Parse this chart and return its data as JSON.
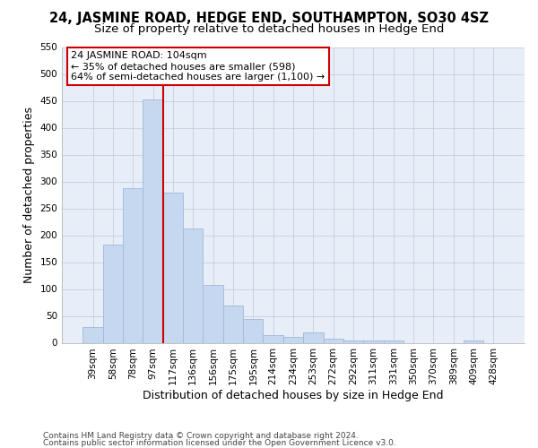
{
  "title": "24, JASMINE ROAD, HEDGE END, SOUTHAMPTON, SO30 4SZ",
  "subtitle": "Size of property relative to detached houses in Hedge End",
  "xlabel": "Distribution of detached houses by size in Hedge End",
  "ylabel": "Number of detached properties",
  "categories": [
    "39sqm",
    "58sqm",
    "78sqm",
    "97sqm",
    "117sqm",
    "136sqm",
    "156sqm",
    "175sqm",
    "195sqm",
    "214sqm",
    "234sqm",
    "253sqm",
    "272sqm",
    "292sqm",
    "311sqm",
    "331sqm",
    "350sqm",
    "370sqm",
    "389sqm",
    "409sqm",
    "428sqm"
  ],
  "values": [
    30,
    183,
    287,
    452,
    280,
    212,
    108,
    70,
    45,
    14,
    11,
    20,
    7,
    5,
    4,
    5,
    0,
    0,
    0,
    4,
    0
  ],
  "bar_color": "#c5d8f0",
  "bar_edge_color": "#a0b8d8",
  "bg_color": "#e8eef8",
  "grid_color": "#c0c8d8",
  "annotation_box_color": "#ffffff",
  "annotation_border_color": "#cc0000",
  "vline_color": "#cc0000",
  "vline_x": 3.5,
  "annotation_text": "24 JASMINE ROAD: 104sqm\n← 35% of detached houses are smaller (598)\n64% of semi-detached houses are larger (1,100) →",
  "ylim": [
    0,
    550
  ],
  "yticks": [
    0,
    50,
    100,
    150,
    200,
    250,
    300,
    350,
    400,
    450,
    500,
    550
  ],
  "footer_line1": "Contains HM Land Registry data © Crown copyright and database right 2024.",
  "footer_line2": "Contains public sector information licensed under the Open Government Licence v3.0.",
  "background_color": "#ffffff",
  "title_fontsize": 10.5,
  "subtitle_fontsize": 9.5,
  "axis_label_fontsize": 9,
  "tick_fontsize": 7.5,
  "annotation_fontsize": 8,
  "footer_fontsize": 6.5
}
